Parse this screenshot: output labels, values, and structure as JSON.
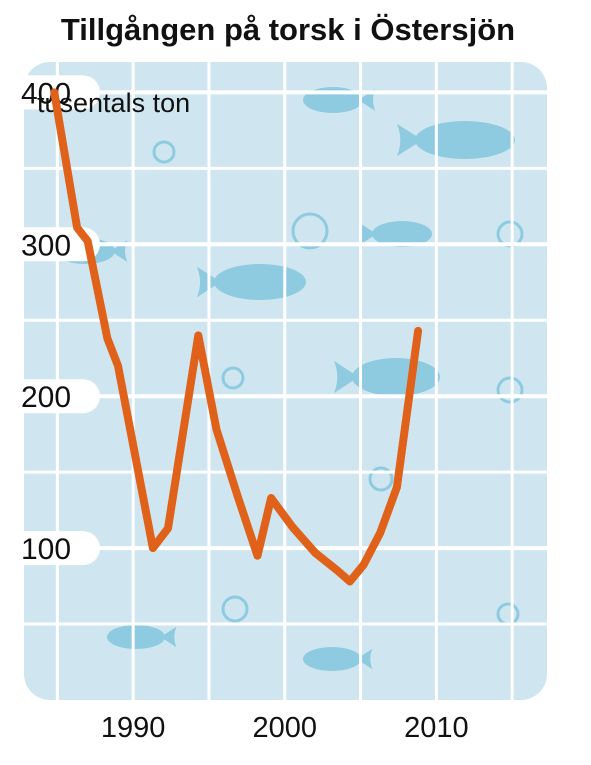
{
  "chart_data": {
    "type": "line",
    "title": "Tillgången på torsk i Östersjön",
    "ylabel": "tusentals ton",
    "xlabel": "",
    "xlim": [
      1982.8,
      2017.3
    ],
    "ylim": [
      0,
      420
    ],
    "x_ticks": [
      1990,
      2000,
      2010
    ],
    "x_tick_labels": [
      "1990",
      "2000",
      "2010"
    ],
    "y_ticks": [
      100,
      200,
      300,
      400
    ],
    "y_tick_labels": [
      "100",
      "200",
      "300",
      "400"
    ],
    "grid": true,
    "colors": {
      "plot_background": "#cfe6f0",
      "grid": "#ffffff",
      "line": "#e0621a",
      "decoration": "#8ecbe0"
    },
    "decorations": [
      "fish-icon",
      "bubble-icon"
    ],
    "series": [
      {
        "x": [
          1984.8,
          1986.3,
          1987,
          1988.3,
          1989,
          1991.3,
          1992.3,
          1994.3,
          1995.5,
          1996.9,
          1998.2,
          1999.1,
          2000.5,
          2002,
          2003.5,
          2004.3,
          2005.2,
          2006.3,
          2007.4,
          2008.8
        ],
        "y": [
          400,
          311,
          302,
          238,
          220,
          100,
          113,
          240,
          178,
          134,
          95,
          133,
          114,
          97,
          85,
          78,
          89,
          110,
          140,
          243
        ]
      }
    ]
  }
}
